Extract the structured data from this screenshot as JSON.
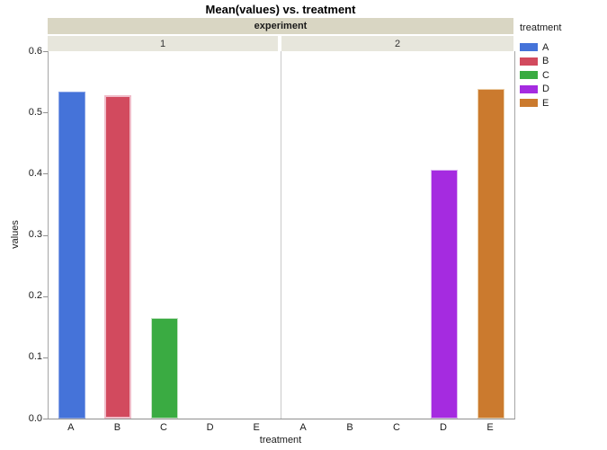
{
  "window": {
    "title": "Mean(values) vs. treatment"
  },
  "chart_data": {
    "type": "bar",
    "title": "Mean(values) vs. treatment",
    "xlabel": "treatment",
    "ylabel": "values",
    "ylim": [
      0,
      0.6
    ],
    "ytick_step": 0.1,
    "grid": false,
    "legend_position": "right",
    "facet_label": "experiment",
    "categories": [
      "A",
      "B",
      "C",
      "D",
      "E"
    ],
    "panels": [
      {
        "label": "1",
        "values": [
          0.534,
          0.528,
          0.165,
          0,
          0
        ]
      },
      {
        "label": "2",
        "values": [
          0,
          0,
          0,
          0.406,
          0.538
        ]
      }
    ],
    "legend": {
      "title": "treatment",
      "entries": [
        "A",
        "B",
        "C",
        "D",
        "E"
      ]
    }
  },
  "colors": {
    "A": {
      "fill": "#4573d9",
      "edge": "#88a3e6"
    },
    "B": {
      "fill": "#d24a5e",
      "edge": "#f0bcc9"
    },
    "C": {
      "fill": "#3aab42",
      "edge": "#c5e3c5"
    },
    "D": {
      "fill": "#a52be0",
      "edge": "#ddb5f2"
    },
    "E": {
      "fill": "#cb7a2e",
      "edge": "#eccfa8"
    },
    "band_header_bg": "#d9d6c3",
    "band_panel_bg": "#e7e6dc",
    "axis_line": "#8f8f8f",
    "panel_separator": "#c9c9c9"
  }
}
